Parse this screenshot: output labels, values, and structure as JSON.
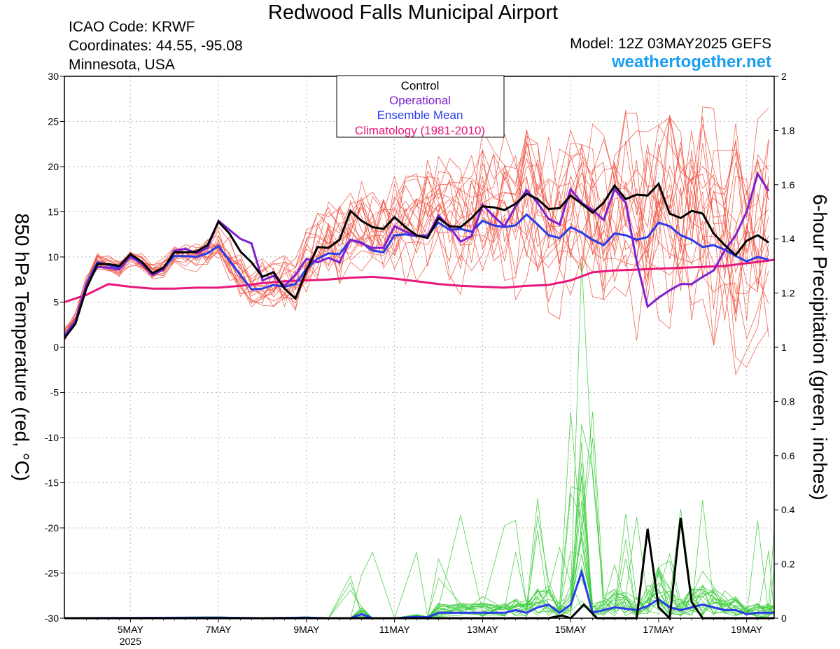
{
  "header": {
    "title": "Redwood Falls Municipal Airport",
    "icao": "ICAO Code: KRWF",
    "coordinates": "Coordinates: 44.55, -95.08",
    "location": "Minnesota, USA",
    "model": "Model: 12Z 03MAY2025 GEFS",
    "site": "weathertogether.net"
  },
  "colors": {
    "members_temp": "#ee4d3b",
    "members_precip": "#3dcc3d",
    "control": "#000000",
    "operational": "#8020d0",
    "ensemble_mean": "#2a3bea",
    "climatology": "#e8177a",
    "site": "#1a9ef0",
    "grid": "#b9b9b9"
  },
  "legend": {
    "control": "Control",
    "operational": "Operational",
    "ensemble_mean": "Ensemble Mean",
    "climatology": "Climatology (1981-2010)"
  },
  "chart_data": {
    "type": "line",
    "title": "Redwood Falls Municipal Airport",
    "xlabel": "",
    "ylabel": "850 hPa Temperature (red, °C)",
    "y2label": "6-hour Precipitation (green, inches)",
    "x_unit": "days from 00Z 3 May 2025",
    "xlim": [
      0.5,
      16.625
    ],
    "ylim": [
      -30,
      30
    ],
    "y2lim": [
      0,
      2
    ],
    "x_ticks": [
      {
        "x": 2,
        "label": "5MAY",
        "sublabel": "2025"
      },
      {
        "x": 4,
        "label": "7MAY",
        "sublabel": ""
      },
      {
        "x": 6,
        "label": "9MAY",
        "sublabel": ""
      },
      {
        "x": 8,
        "label": "11MAY",
        "sublabel": ""
      },
      {
        "x": 10,
        "label": "13MAY",
        "sublabel": ""
      },
      {
        "x": 12,
        "label": "15MAY",
        "sublabel": ""
      },
      {
        "x": 14,
        "label": "17MAY",
        "sublabel": ""
      },
      {
        "x": 16,
        "label": "19MAY",
        "sublabel": ""
      }
    ],
    "y_ticks": [
      -30,
      -25,
      -20,
      -15,
      -10,
      -5,
      0,
      5,
      10,
      15,
      20,
      25,
      30
    ],
    "y2_ticks": [
      0,
      0.2,
      0.4,
      0.6,
      0.8,
      1,
      1.2,
      1.4,
      1.6,
      1.8,
      2
    ],
    "grid": true,
    "legend_position": "top-center",
    "temperature": {
      "control": {
        "name": "Control",
        "points": [
          [
            0.5,
            1
          ],
          [
            0.75,
            2.6
          ],
          [
            1,
            6.5
          ],
          [
            1.25,
            9.2
          ],
          [
            1.5,
            9.2
          ],
          [
            1.75,
            9
          ],
          [
            2,
            10.3
          ],
          [
            2.25,
            9.5
          ],
          [
            2.5,
            8.2
          ],
          [
            2.75,
            8.8
          ],
          [
            3,
            10.5
          ],
          [
            3.25,
            10.5
          ],
          [
            3.5,
            10.6
          ],
          [
            3.75,
            11.3
          ],
          [
            4,
            13.9
          ],
          [
            4.25,
            12.6
          ],
          [
            4.5,
            10.6
          ],
          [
            4.75,
            9.4
          ],
          [
            5,
            7.8
          ],
          [
            5.25,
            8.3
          ],
          [
            5.5,
            6.5
          ],
          [
            5.75,
            5.4
          ],
          [
            6,
            8.5
          ],
          [
            6.25,
            11.1
          ],
          [
            6.5,
            11
          ],
          [
            6.75,
            11.9
          ],
          [
            7,
            15.1
          ],
          [
            7.25,
            14
          ],
          [
            7.5,
            13.3
          ],
          [
            7.75,
            13.1
          ],
          [
            8,
            14.4
          ],
          [
            8.25,
            13.3
          ],
          [
            8.5,
            12.4
          ],
          [
            8.75,
            12.1
          ],
          [
            9,
            14.3
          ],
          [
            9.25,
            13.4
          ],
          [
            9.5,
            13.3
          ],
          [
            9.75,
            14.3
          ],
          [
            10,
            15.6
          ],
          [
            10.25,
            15.5
          ],
          [
            10.5,
            15.2
          ],
          [
            10.75,
            15.9
          ],
          [
            11,
            17
          ],
          [
            11.25,
            16.4
          ],
          [
            11.5,
            15.3
          ],
          [
            11.75,
            15.4
          ],
          [
            12,
            16.8
          ],
          [
            12.25,
            15.9
          ],
          [
            12.5,
            14.9
          ],
          [
            12.75,
            16
          ],
          [
            13,
            17.9
          ],
          [
            13.25,
            16.4
          ],
          [
            13.5,
            16.9
          ],
          [
            13.75,
            16.8
          ],
          [
            14,
            18.1
          ],
          [
            14.25,
            14.8
          ],
          [
            14.5,
            14.3
          ],
          [
            14.75,
            15.1
          ],
          [
            15,
            14.8
          ],
          [
            15.25,
            12.6
          ],
          [
            15.5,
            11.3
          ],
          [
            15.75,
            10.2
          ],
          [
            16,
            11.8
          ],
          [
            16.25,
            12.4
          ],
          [
            16.5,
            11.6
          ]
        ]
      },
      "operational": {
        "name": "Operational",
        "points": [
          [
            0.5,
            1.2
          ],
          [
            0.75,
            2.8
          ],
          [
            1,
            7
          ],
          [
            1.25,
            8.9
          ],
          [
            1.5,
            8.8
          ],
          [
            1.75,
            8.6
          ],
          [
            2,
            10.1
          ],
          [
            2.25,
            9.3
          ],
          [
            2.5,
            8
          ],
          [
            2.75,
            8.6
          ],
          [
            3,
            10.7
          ],
          [
            3.25,
            10.9
          ],
          [
            3.5,
            10.4
          ],
          [
            3.75,
            11
          ],
          [
            4,
            14
          ],
          [
            4.25,
            13
          ],
          [
            4.5,
            12
          ],
          [
            4.75,
            11.5
          ],
          [
            5,
            7.4
          ],
          [
            5.25,
            7.9
          ],
          [
            5.5,
            6.8
          ],
          [
            5.75,
            8
          ],
          [
            6,
            9.8
          ],
          [
            6.25,
            9.4
          ],
          [
            6.5,
            9.9
          ],
          [
            6.75,
            9.4
          ],
          [
            7,
            11.9
          ],
          [
            7.25,
            11.5
          ],
          [
            7.5,
            11
          ],
          [
            7.75,
            11
          ],
          [
            8,
            13.4
          ],
          [
            8.25,
            12.8
          ],
          [
            8.5,
            12.3
          ],
          [
            8.75,
            12.3
          ],
          [
            9,
            14.6
          ],
          [
            9.25,
            13.3
          ],
          [
            9.5,
            11.7
          ],
          [
            9.75,
            12.3
          ],
          [
            10,
            15.8
          ],
          [
            10.25,
            14.5
          ],
          [
            10.5,
            13.4
          ],
          [
            10.75,
            15.6
          ],
          [
            11,
            17.4
          ],
          [
            11.25,
            16
          ],
          [
            11.5,
            14.2
          ],
          [
            11.75,
            13.6
          ],
          [
            12,
            17.5
          ],
          [
            12.25,
            16
          ],
          [
            12.5,
            15.2
          ],
          [
            12.75,
            14.1
          ],
          [
            13,
            17.5
          ],
          [
            13.25,
            16
          ],
          [
            13.5,
            9.5
          ],
          [
            13.75,
            4.5
          ],
          [
            14,
            5.5
          ],
          [
            14.25,
            6.3
          ],
          [
            14.5,
            7
          ],
          [
            14.75,
            7
          ],
          [
            15,
            7.8
          ],
          [
            15.25,
            8.5
          ],
          [
            15.5,
            10.7
          ],
          [
            15.75,
            12.4
          ],
          [
            16,
            15
          ],
          [
            16.25,
            19.2
          ],
          [
            16.5,
            17.3
          ]
        ]
      },
      "ensemble_mean": {
        "name": "Ensemble Mean",
        "points": [
          [
            0.5,
            1.3
          ],
          [
            0.75,
            2.9
          ],
          [
            1,
            7
          ],
          [
            1.25,
            9.4
          ],
          [
            1.5,
            9.1
          ],
          [
            1.75,
            8.8
          ],
          [
            2,
            10
          ],
          [
            2.25,
            9.3
          ],
          [
            2.5,
            8.1
          ],
          [
            2.75,
            8.7
          ],
          [
            3,
            10.1
          ],
          [
            3.25,
            10.1
          ],
          [
            3.5,
            10
          ],
          [
            3.75,
            10.4
          ],
          [
            4,
            11.2
          ],
          [
            4.25,
            9.6
          ],
          [
            4.5,
            8
          ],
          [
            4.75,
            6.4
          ],
          [
            5,
            6.5
          ],
          [
            5.25,
            6.9
          ],
          [
            5.5,
            6.7
          ],
          [
            5.75,
            7
          ],
          [
            6,
            8.7
          ],
          [
            6.25,
            9.8
          ],
          [
            6.5,
            10.4
          ],
          [
            6.75,
            10.3
          ],
          [
            7,
            11.9
          ],
          [
            7.25,
            11.6
          ],
          [
            7.5,
            10.7
          ],
          [
            7.75,
            10.5
          ],
          [
            8,
            12.4
          ],
          [
            8.25,
            12.5
          ],
          [
            8.5,
            12.3
          ],
          [
            8.75,
            12.4
          ],
          [
            9,
            13.8
          ],
          [
            9.25,
            13
          ],
          [
            9.5,
            13.1
          ],
          [
            9.75,
            12.8
          ],
          [
            10,
            14
          ],
          [
            10.25,
            13.5
          ],
          [
            10.5,
            13.3
          ],
          [
            10.75,
            13.5
          ],
          [
            11,
            14.7
          ],
          [
            11.25,
            13.6
          ],
          [
            11.5,
            12.4
          ],
          [
            11.75,
            12.1
          ],
          [
            12,
            13.3
          ],
          [
            12.25,
            12.7
          ],
          [
            12.5,
            11.9
          ],
          [
            12.75,
            11.3
          ],
          [
            13,
            12.6
          ],
          [
            13.25,
            12.4
          ],
          [
            13.5,
            11.9
          ],
          [
            13.75,
            12.2
          ],
          [
            14,
            13.8
          ],
          [
            14.25,
            13.4
          ],
          [
            14.5,
            12.4
          ],
          [
            14.75,
            11.9
          ],
          [
            15,
            11.1
          ],
          [
            15.25,
            11.3
          ],
          [
            15.5,
            10.8
          ],
          [
            15.75,
            10.1
          ],
          [
            16,
            9.5
          ],
          [
            16.25,
            10
          ],
          [
            16.5,
            9.7
          ]
        ]
      },
      "climatology": {
        "name": "Climatology (1981-2010)",
        "points": [
          [
            0.5,
            5
          ],
          [
            1,
            5.8
          ],
          [
            1.5,
            7
          ],
          [
            2,
            6.7
          ],
          [
            2.5,
            6.5
          ],
          [
            3,
            6.5
          ],
          [
            3.5,
            6.6
          ],
          [
            4,
            6.6
          ],
          [
            4.5,
            6.8
          ],
          [
            5,
            7.1
          ],
          [
            5.5,
            7.3
          ],
          [
            6,
            7.4
          ],
          [
            6.5,
            7.5
          ],
          [
            7,
            7.7
          ],
          [
            7.5,
            7.8
          ],
          [
            8,
            7.6
          ],
          [
            8.5,
            7.3
          ],
          [
            9,
            7
          ],
          [
            9.5,
            6.8
          ],
          [
            10,
            6.7
          ],
          [
            10.5,
            6.6
          ],
          [
            11,
            6.8
          ],
          [
            11.5,
            6.9
          ],
          [
            12,
            7.4
          ],
          [
            12.5,
            8.3
          ],
          [
            13,
            8.5
          ],
          [
            13.5,
            8.6
          ],
          [
            14,
            8.7
          ],
          [
            14.5,
            8.8
          ],
          [
            15,
            8.9
          ],
          [
            15.5,
            9
          ],
          [
            16,
            9.3
          ],
          [
            16.5,
            9.6
          ],
          [
            16.625,
            9.7
          ]
        ]
      },
      "member_count": 20,
      "member_spread_note": ""
    },
    "precipitation": {
      "control": {
        "name": "Control",
        "points": [
          [
            0.5,
            0
          ],
          [
            11.5,
            0
          ],
          [
            11.8,
            0.01
          ],
          [
            12,
            0
          ],
          [
            12.3,
            0.05
          ],
          [
            12.6,
            0
          ],
          [
            13,
            0
          ],
          [
            13.5,
            0
          ],
          [
            13.75,
            0.33
          ],
          [
            14,
            0.04
          ],
          [
            14.25,
            0
          ],
          [
            14.5,
            0.37
          ],
          [
            14.75,
            0.06
          ],
          [
            15,
            0
          ],
          [
            16.625,
            0
          ]
        ]
      },
      "ensemble_mean": {
        "name": "Ensemble Mean",
        "points": [
          [
            0.5,
            0
          ],
          [
            4,
            0.002
          ],
          [
            5,
            0
          ],
          [
            6,
            0.002
          ],
          [
            6.5,
            0
          ],
          [
            7,
            0
          ],
          [
            7.25,
            0.015
          ],
          [
            7.5,
            0
          ],
          [
            8,
            0
          ],
          [
            8.5,
            0.005
          ],
          [
            8.75,
            0.003
          ],
          [
            9,
            0.02
          ],
          [
            9.5,
            0.02
          ],
          [
            10,
            0.02
          ],
          [
            10.5,
            0.02
          ],
          [
            10.75,
            0.03
          ],
          [
            11,
            0.02
          ],
          [
            11.25,
            0.04
          ],
          [
            11.5,
            0.05
          ],
          [
            11.75,
            0.02
          ],
          [
            12,
            0.05
          ],
          [
            12.25,
            0.17
          ],
          [
            12.5,
            0.02
          ],
          [
            12.75,
            0.03
          ],
          [
            13,
            0.04
          ],
          [
            13.25,
            0.035
          ],
          [
            13.5,
            0.03
          ],
          [
            13.75,
            0.045
          ],
          [
            14,
            0.07
          ],
          [
            14.25,
            0.04
          ],
          [
            14.5,
            0.03
          ],
          [
            14.75,
            0.04
          ],
          [
            15,
            0.05
          ],
          [
            15.25,
            0.04
          ],
          [
            15.5,
            0.03
          ],
          [
            15.75,
            0.03
          ],
          [
            16,
            0.015
          ],
          [
            16.25,
            0.02
          ],
          [
            16.5,
            0.02
          ],
          [
            16.625,
            0.02
          ]
        ]
      }
    }
  }
}
